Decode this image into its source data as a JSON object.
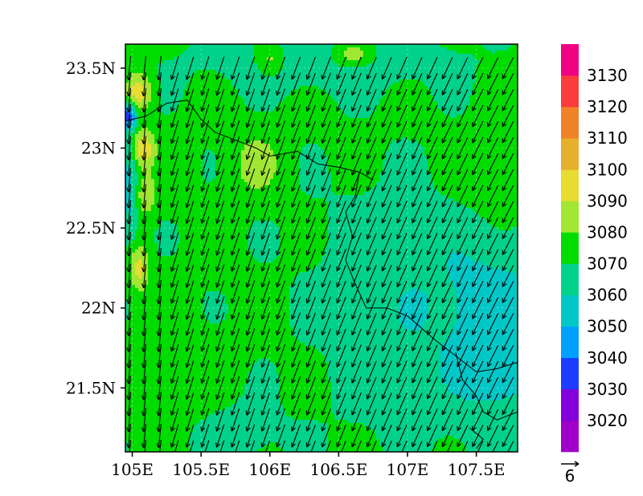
{
  "chart_data": {
    "type": "heatmap",
    "variable_units_note": "",
    "lon_range": [
      104.95,
      107.8
    ],
    "lat_range": [
      21.1,
      23.65
    ],
    "x_ticks": [
      {
        "value": 105.0,
        "label": "105E"
      },
      {
        "value": 105.5,
        "label": "105.5E"
      },
      {
        "value": 106.0,
        "label": "106E"
      },
      {
        "value": 106.5,
        "label": "106.5E"
      },
      {
        "value": 107.0,
        "label": "107E"
      },
      {
        "value": 107.5,
        "label": "107.5E"
      }
    ],
    "y_ticks": [
      {
        "value": 23.5,
        "label": "23.5N"
      },
      {
        "value": 23.0,
        "label": "23N"
      },
      {
        "value": 22.5,
        "label": "22.5N"
      },
      {
        "value": 22.0,
        "label": "22N"
      },
      {
        "value": 21.5,
        "label": "21.5N"
      }
    ],
    "colorbar": {
      "levels": [
        3020,
        3030,
        3040,
        3050,
        3060,
        3070,
        3080,
        3090,
        3100,
        3110,
        3120,
        3130
      ],
      "labels": [
        "3020",
        "3030",
        "3040",
        "3050",
        "3060",
        "3070",
        "3080",
        "3090",
        "3100",
        "3110",
        "3120",
        "3130"
      ],
      "colors": [
        "#a000c8",
        "#8200dc",
        "#1e3cff",
        "#00a0ff",
        "#00c8c8",
        "#00d28c",
        "#00dc00",
        "#a0e632",
        "#e6dc32",
        "#e6af2d",
        "#f08228",
        "#fa3c3c",
        "#f00082"
      ]
    },
    "wind": {
      "mean_direction_deg_to": 195,
      "typical_speed": 8,
      "reference_vector": {
        "label": "6",
        "speed": 6
      }
    },
    "grid": true
  }
}
